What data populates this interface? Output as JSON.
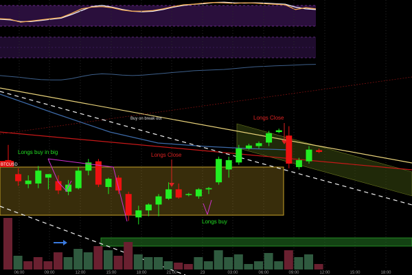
{
  "colors": {
    "background": "#000000",
    "up": "#22ee22",
    "down": "#ee1111",
    "rsi_fill": "#2a0f3c",
    "rsi_band": "#6a2a8a",
    "k_line": "#f0a850",
    "d_line": "#f0f0ff",
    "mid_line": "#3d5f8a",
    "trend_white": "#e8e8e8",
    "trend_yellow": "#e8d27a",
    "trend_red": "#c81818",
    "box_fill": "#c9a227",
    "channel_fill": "#3a4a10",
    "green_zone": "#1f6e1f",
    "vol_up": "#2f5a3f",
    "vol_down": "#6a2030",
    "ann_green": "#22dd22",
    "ann_red": "#dd2222",
    "ann_magenta": "#d030d0",
    "arrow_blue": "#3a7ae0",
    "axis_text": "#9a9a9a",
    "price_badge": "#dd1111"
  },
  "price_badge": "BTCUSD",
  "annotations": {
    "longs_buy_in_big": "Longs buy in big",
    "longs_close_1": "Longs Close",
    "longs_close_2": "Longs Close",
    "buy_on_break_out": "Buy on break out",
    "longs_buy": "Longs buy"
  },
  "chart_data": {
    "type": "candlestick",
    "x_tick_labels": [
      "06:00",
      "09:00",
      "12:00",
      "15:00",
      "18:00",
      "21:00",
      "23",
      "03:00",
      "06:00",
      "09:00",
      "12:00",
      "15:00",
      "18:00"
    ],
    "candles": [
      {
        "o": 8.3,
        "h": 9.6,
        "l": 7.9,
        "c": 7.85
      },
      {
        "o": 7.1,
        "h": 7.6,
        "l": 6.1,
        "c": 6.5
      },
      {
        "o": 6.25,
        "h": 7.0,
        "l": 5.9,
        "c": 6.55
      },
      {
        "o": 6.3,
        "h": 7.8,
        "l": 5.9,
        "c": 7.4
      },
      {
        "o": 6.8,
        "h": 7.1,
        "l": 5.8,
        "c": 7.1
      },
      {
        "o": 6.5,
        "h": 7.0,
        "l": 5.4,
        "c": 5.7
      },
      {
        "o": 5.6,
        "h": 6.6,
        "l": 5.3,
        "c": 6.2
      },
      {
        "o": 5.9,
        "h": 7.7,
        "l": 5.8,
        "c": 7.4
      },
      {
        "o": 7.4,
        "h": 8.4,
        "l": 7.0,
        "c": 8.1
      },
      {
        "o": 8.2,
        "h": 8.4,
        "l": 6.0,
        "c": 6.2
      },
      {
        "o": 6.0,
        "h": 6.8,
        "l": 5.4,
        "c": 6.7
      },
      {
        "o": 6.8,
        "h": 7.0,
        "l": 5.4,
        "c": 5.7
      },
      {
        "o": 5.4,
        "h": 5.6,
        "l": 3.1,
        "c": 3.6
      },
      {
        "o": 3.4,
        "h": 4.4,
        "l": 2.8,
        "c": 4.0
      },
      {
        "o": 4.0,
        "h": 4.6,
        "l": 3.5,
        "c": 4.5
      },
      {
        "o": 4.5,
        "h": 5.4,
        "l": 3.5,
        "c": 5.2
      },
      {
        "o": 5.0,
        "h": 6.4,
        "l": 4.9,
        "c": 5.8
      },
      {
        "o": 5.8,
        "h": 6.3,
        "l": 5.0,
        "c": 5.1
      },
      {
        "o": 5.35,
        "h": 5.5,
        "l": 5.2,
        "c": 5.4
      },
      {
        "o": 5.2,
        "h": 5.9,
        "l": 5.0,
        "c": 5.8
      },
      {
        "o": 5.8,
        "h": 6.0,
        "l": 5.4,
        "c": 5.9
      },
      {
        "o": 6.4,
        "h": 8.6,
        "l": 6.2,
        "c": 8.4
      },
      {
        "o": 7.5,
        "h": 8.6,
        "l": 6.8,
        "c": 8.3
      },
      {
        "o": 8.1,
        "h": 9.6,
        "l": 7.9,
        "c": 9.3
      },
      {
        "o": 9.3,
        "h": 9.7,
        "l": 9.2,
        "c": 9.55
      },
      {
        "o": 9.5,
        "h": 9.9,
        "l": 9.3,
        "c": 9.75
      },
      {
        "o": 9.8,
        "h": 10.8,
        "l": 9.5,
        "c": 10.6
      },
      {
        "o": 10.7,
        "h": 11.0,
        "l": 10.6,
        "c": 10.85
      },
      {
        "o": 10.4,
        "h": 11.2,
        "l": 7.6,
        "c": 8.0
      },
      {
        "o": 7.7,
        "h": 8.5,
        "l": 7.5,
        "c": 8.3
      },
      {
        "o": 8.2,
        "h": 9.5,
        "l": 8.0,
        "c": 9.2
      },
      {
        "o": 9.15,
        "h": 9.3,
        "l": 8.9,
        "c": 9.0
      }
    ],
    "volume": [
      {
        "v": 75,
        "up": false
      },
      {
        "v": 20,
        "up": true
      },
      {
        "v": 12,
        "up": false
      },
      {
        "v": 18,
        "up": false
      },
      {
        "v": 12,
        "up": false
      },
      {
        "v": 25,
        "up": false
      },
      {
        "v": 18,
        "up": true
      },
      {
        "v": 30,
        "up": true
      },
      {
        "v": 25,
        "up": true
      },
      {
        "v": 34,
        "up": false
      },
      {
        "v": 28,
        "up": true
      },
      {
        "v": 20,
        "up": false
      },
      {
        "v": 40,
        "up": false
      },
      {
        "v": 22,
        "up": true
      },
      {
        "v": 18,
        "up": true
      },
      {
        "v": 18,
        "up": true
      },
      {
        "v": 12,
        "up": true
      },
      {
        "v": 10,
        "up": false
      },
      {
        "v": 8,
        "up": false
      },
      {
        "v": 18,
        "up": true
      },
      {
        "v": 12,
        "up": true
      },
      {
        "v": 28,
        "up": true
      },
      {
        "v": 18,
        "up": true
      },
      {
        "v": 22,
        "up": true
      },
      {
        "v": 8,
        "up": true
      },
      {
        "v": 12,
        "up": true
      },
      {
        "v": 24,
        "up": true
      },
      {
        "v": 12,
        "up": true
      },
      {
        "v": 28,
        "up": false
      },
      {
        "v": 18,
        "up": true
      },
      {
        "v": 22,
        "up": true
      },
      {
        "v": 8,
        "up": false
      }
    ],
    "stoch_k": [
      40,
      38,
      28,
      32,
      36,
      40,
      44,
      58,
      74,
      80,
      82,
      78,
      70,
      66,
      66,
      68,
      74,
      82,
      88,
      90,
      94,
      96,
      95,
      93,
      95,
      94,
      92,
      90,
      88,
      72,
      78,
      74
    ],
    "stoch_d": [
      38,
      36,
      30,
      30,
      34,
      38,
      42,
      54,
      68,
      82,
      86,
      80,
      72,
      66,
      64,
      66,
      72,
      80,
      86,
      90,
      92,
      96,
      97,
      95,
      94,
      95,
      94,
      92,
      90,
      80,
      74,
      72
    ],
    "mid_line": [
      44,
      40,
      36,
      30,
      26,
      24,
      24,
      30,
      40,
      48,
      52,
      50,
      46,
      44,
      46,
      50,
      54,
      58,
      62,
      66,
      68,
      70,
      72,
      76,
      80,
      84,
      86,
      88,
      90,
      92,
      94,
      95
    ]
  }
}
